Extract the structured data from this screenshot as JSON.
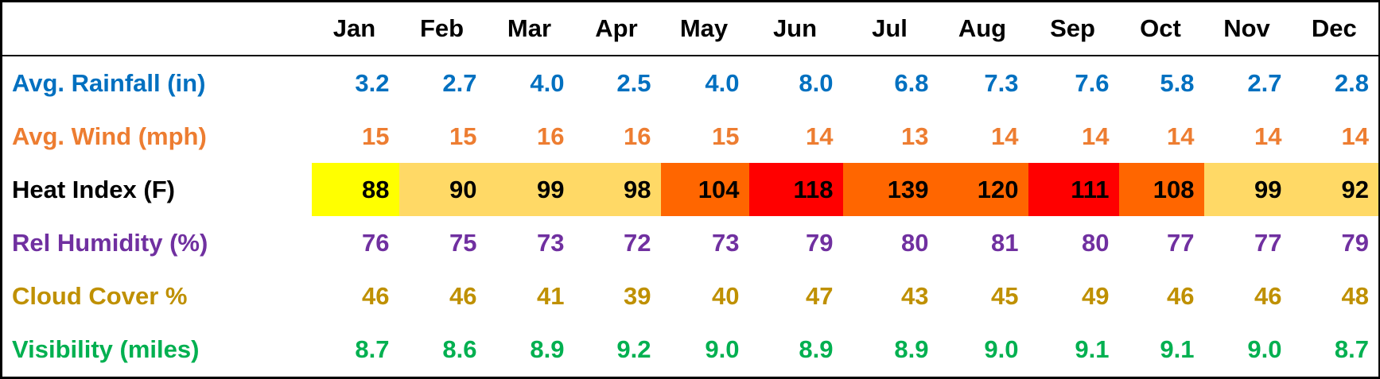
{
  "table": {
    "header": [
      "Jan",
      "Feb",
      "Mar",
      "Apr",
      "May",
      "Jun",
      "Jul",
      "Aug",
      "Sep",
      "Oct",
      "Nov",
      "Dec"
    ],
    "rows": [
      {
        "label": "Avg. Rainfall (in)",
        "color": "#0070c0",
        "values": [
          "3.2",
          "2.7",
          "4.0",
          "2.5",
          "4.0",
          "8.0",
          "6.8",
          "7.3",
          "7.6",
          "5.8",
          "2.7",
          "2.8"
        ]
      },
      {
        "label": "Avg. Wind (mph)",
        "color": "#ed7d31",
        "values": [
          "15",
          "15",
          "16",
          "16",
          "15",
          "14",
          "13",
          "14",
          "14",
          "14",
          "14",
          "14"
        ]
      },
      {
        "label": "Heat Index (F)",
        "color": "#000000",
        "values": [
          "88",
          "90",
          "99",
          "98",
          "104",
          "118",
          "139",
          "120",
          "111",
          "108",
          "99",
          "92"
        ],
        "fills": [
          "#ffff00",
          "#ffd966",
          "#ffd966",
          "#ffd966",
          "#ff6600",
          "#ff0000",
          "#ff6600",
          "#ff6600",
          "#ff0000",
          "#ff6600",
          "#ffd966",
          "#ffd966"
        ]
      },
      {
        "label": "Rel Humidity (%)",
        "color": "#7030a0",
        "values": [
          "76",
          "75",
          "73",
          "72",
          "73",
          "79",
          "80",
          "81",
          "80",
          "77",
          "77",
          "79"
        ]
      },
      {
        "label": "Cloud Cover %",
        "color": "#bf9000",
        "values": [
          "46",
          "46",
          "41",
          "39",
          "40",
          "47",
          "43",
          "45",
          "49",
          "46",
          "46",
          "48"
        ]
      },
      {
        "label": "Visibility (miles)",
        "color": "#00b050",
        "values": [
          "8.7",
          "8.6",
          "8.9",
          "9.2",
          "9.0",
          "8.9",
          "8.9",
          "9.0",
          "9.1",
          "9.1",
          "9.0",
          "8.7"
        ]
      }
    ]
  }
}
